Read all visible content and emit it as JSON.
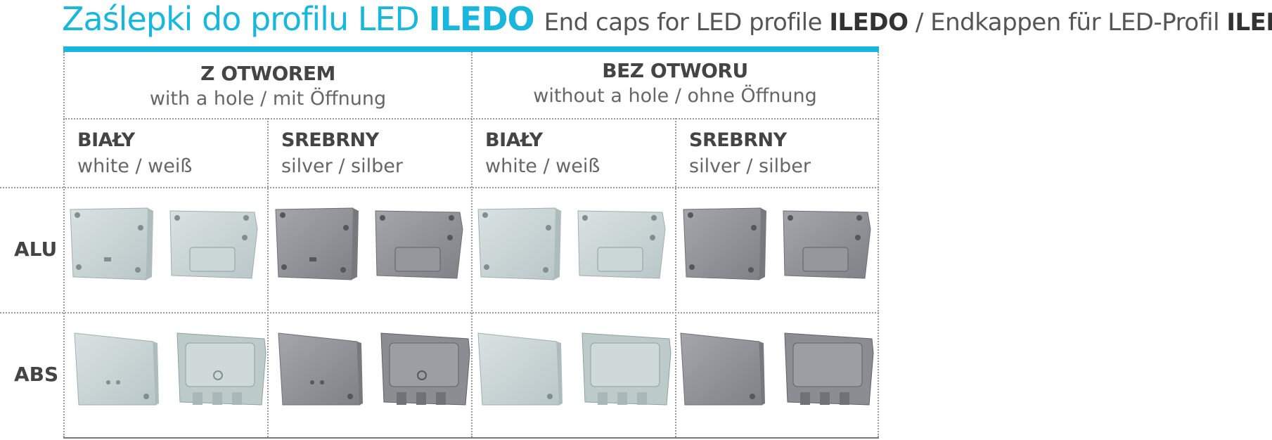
{
  "title": {
    "pl_prefix": "Zaślepki do profilu LED ",
    "pl_brand": "ILEDO",
    "en_prefix": "End caps for LED profile ",
    "en_brand": "ILEDO",
    "sep": " / ",
    "de_prefix": "Endkappen für LED-Profil ",
    "de_brand": "ILEDO"
  },
  "colors": {
    "accent": "#1ab7dd",
    "white_cap": "#c8d3d4",
    "silver_cap": "#8f9296"
  },
  "groups": [
    {
      "title": "Z OTWOREM",
      "subtitle": "with a hole / mit Öffnung"
    },
    {
      "title": "BEZ OTWORU",
      "subtitle": "without a hole / ohne Öffnung"
    }
  ],
  "columns": [
    {
      "title": "BIAŁY",
      "subtitle": "white / weiß"
    },
    {
      "title": "SREBRNY",
      "subtitle": "silver / silber"
    },
    {
      "title": "BIAŁY",
      "subtitle": "white / weiß"
    },
    {
      "title": "SREBRNY",
      "subtitle": "silver / silber"
    }
  ],
  "rows": [
    {
      "label": "ALU"
    },
    {
      "label": "ABS"
    }
  ]
}
